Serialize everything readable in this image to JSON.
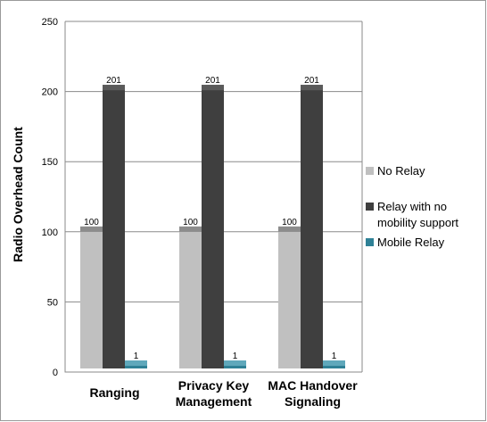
{
  "chart_data": {
    "type": "bar",
    "categories": [
      "Ranging",
      "Privacy Key Management",
      "MAC Handover Signaling"
    ],
    "category_lines": [
      [
        "Ranging"
      ],
      [
        "Privacy Key",
        "Management"
      ],
      [
        "MAC Handover",
        "Signaling"
      ]
    ],
    "series": [
      {
        "name": "No Relay",
        "values": [
          100,
          100,
          100
        ],
        "color": "#c0c0c0",
        "top_color": "#8c8c8c",
        "legend_lines": [
          "No Relay"
        ]
      },
      {
        "name": "Relay with no mobility support",
        "values": [
          201,
          201,
          201
        ],
        "color": "#3f3f3f",
        "top_color": "#5a5a5a",
        "legend_lines": [
          "Relay with no",
          "mobility support"
        ]
      },
      {
        "name": "Mobile Relay",
        "values": [
          1,
          1,
          1
        ],
        "color": "#2f8196",
        "top_color": "#5fa8bb",
        "legend_lines": [
          "Mobile Relay"
        ]
      }
    ],
    "data_labels": [
      [
        "100",
        "201",
        "1"
      ],
      [
        "100",
        "201",
        "1"
      ],
      [
        "100",
        "201",
        "1"
      ]
    ],
    "ylabel": "Radio Overhead Count",
    "xlabel": "",
    "title": "",
    "ylim": [
      0,
      250
    ],
    "yticks": [
      0,
      50,
      100,
      150,
      200,
      250
    ],
    "grid": true,
    "legend_position": "right"
  }
}
